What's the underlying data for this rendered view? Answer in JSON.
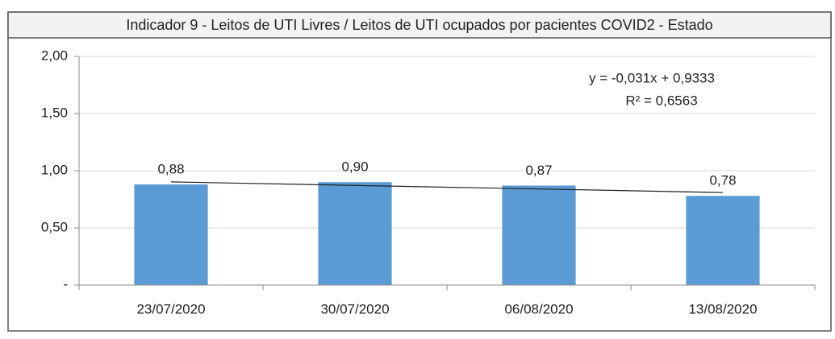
{
  "chart_data": {
    "type": "bar",
    "title": "Indicador 9 - Leitos de UTI Livres / Leitos de UTI ocupados por pacientes COVID2 - Estado",
    "categories": [
      "23/07/2020",
      "30/07/2020",
      "06/08/2020",
      "13/08/2020"
    ],
    "values": [
      0.88,
      0.9,
      0.87,
      0.78
    ],
    "value_labels": [
      "0,88",
      "0,90",
      "0,87",
      "0,78"
    ],
    "color": "#5b9bd5",
    "ylim": [
      0,
      2
    ],
    "yticks": [
      {
        "value": 0,
        "label": "-"
      },
      {
        "value": 0.5,
        "label": "0,50"
      },
      {
        "value": 1,
        "label": "1,00"
      },
      {
        "value": 1.5,
        "label": "1,50"
      },
      {
        "value": 2,
        "label": "2,00"
      }
    ],
    "grid": true,
    "trendline": {
      "slope": -0.031,
      "intercept": 0.9333,
      "equation": "y = -0,031x + 0,9333",
      "r_squared": "R² = 0,6563"
    }
  }
}
